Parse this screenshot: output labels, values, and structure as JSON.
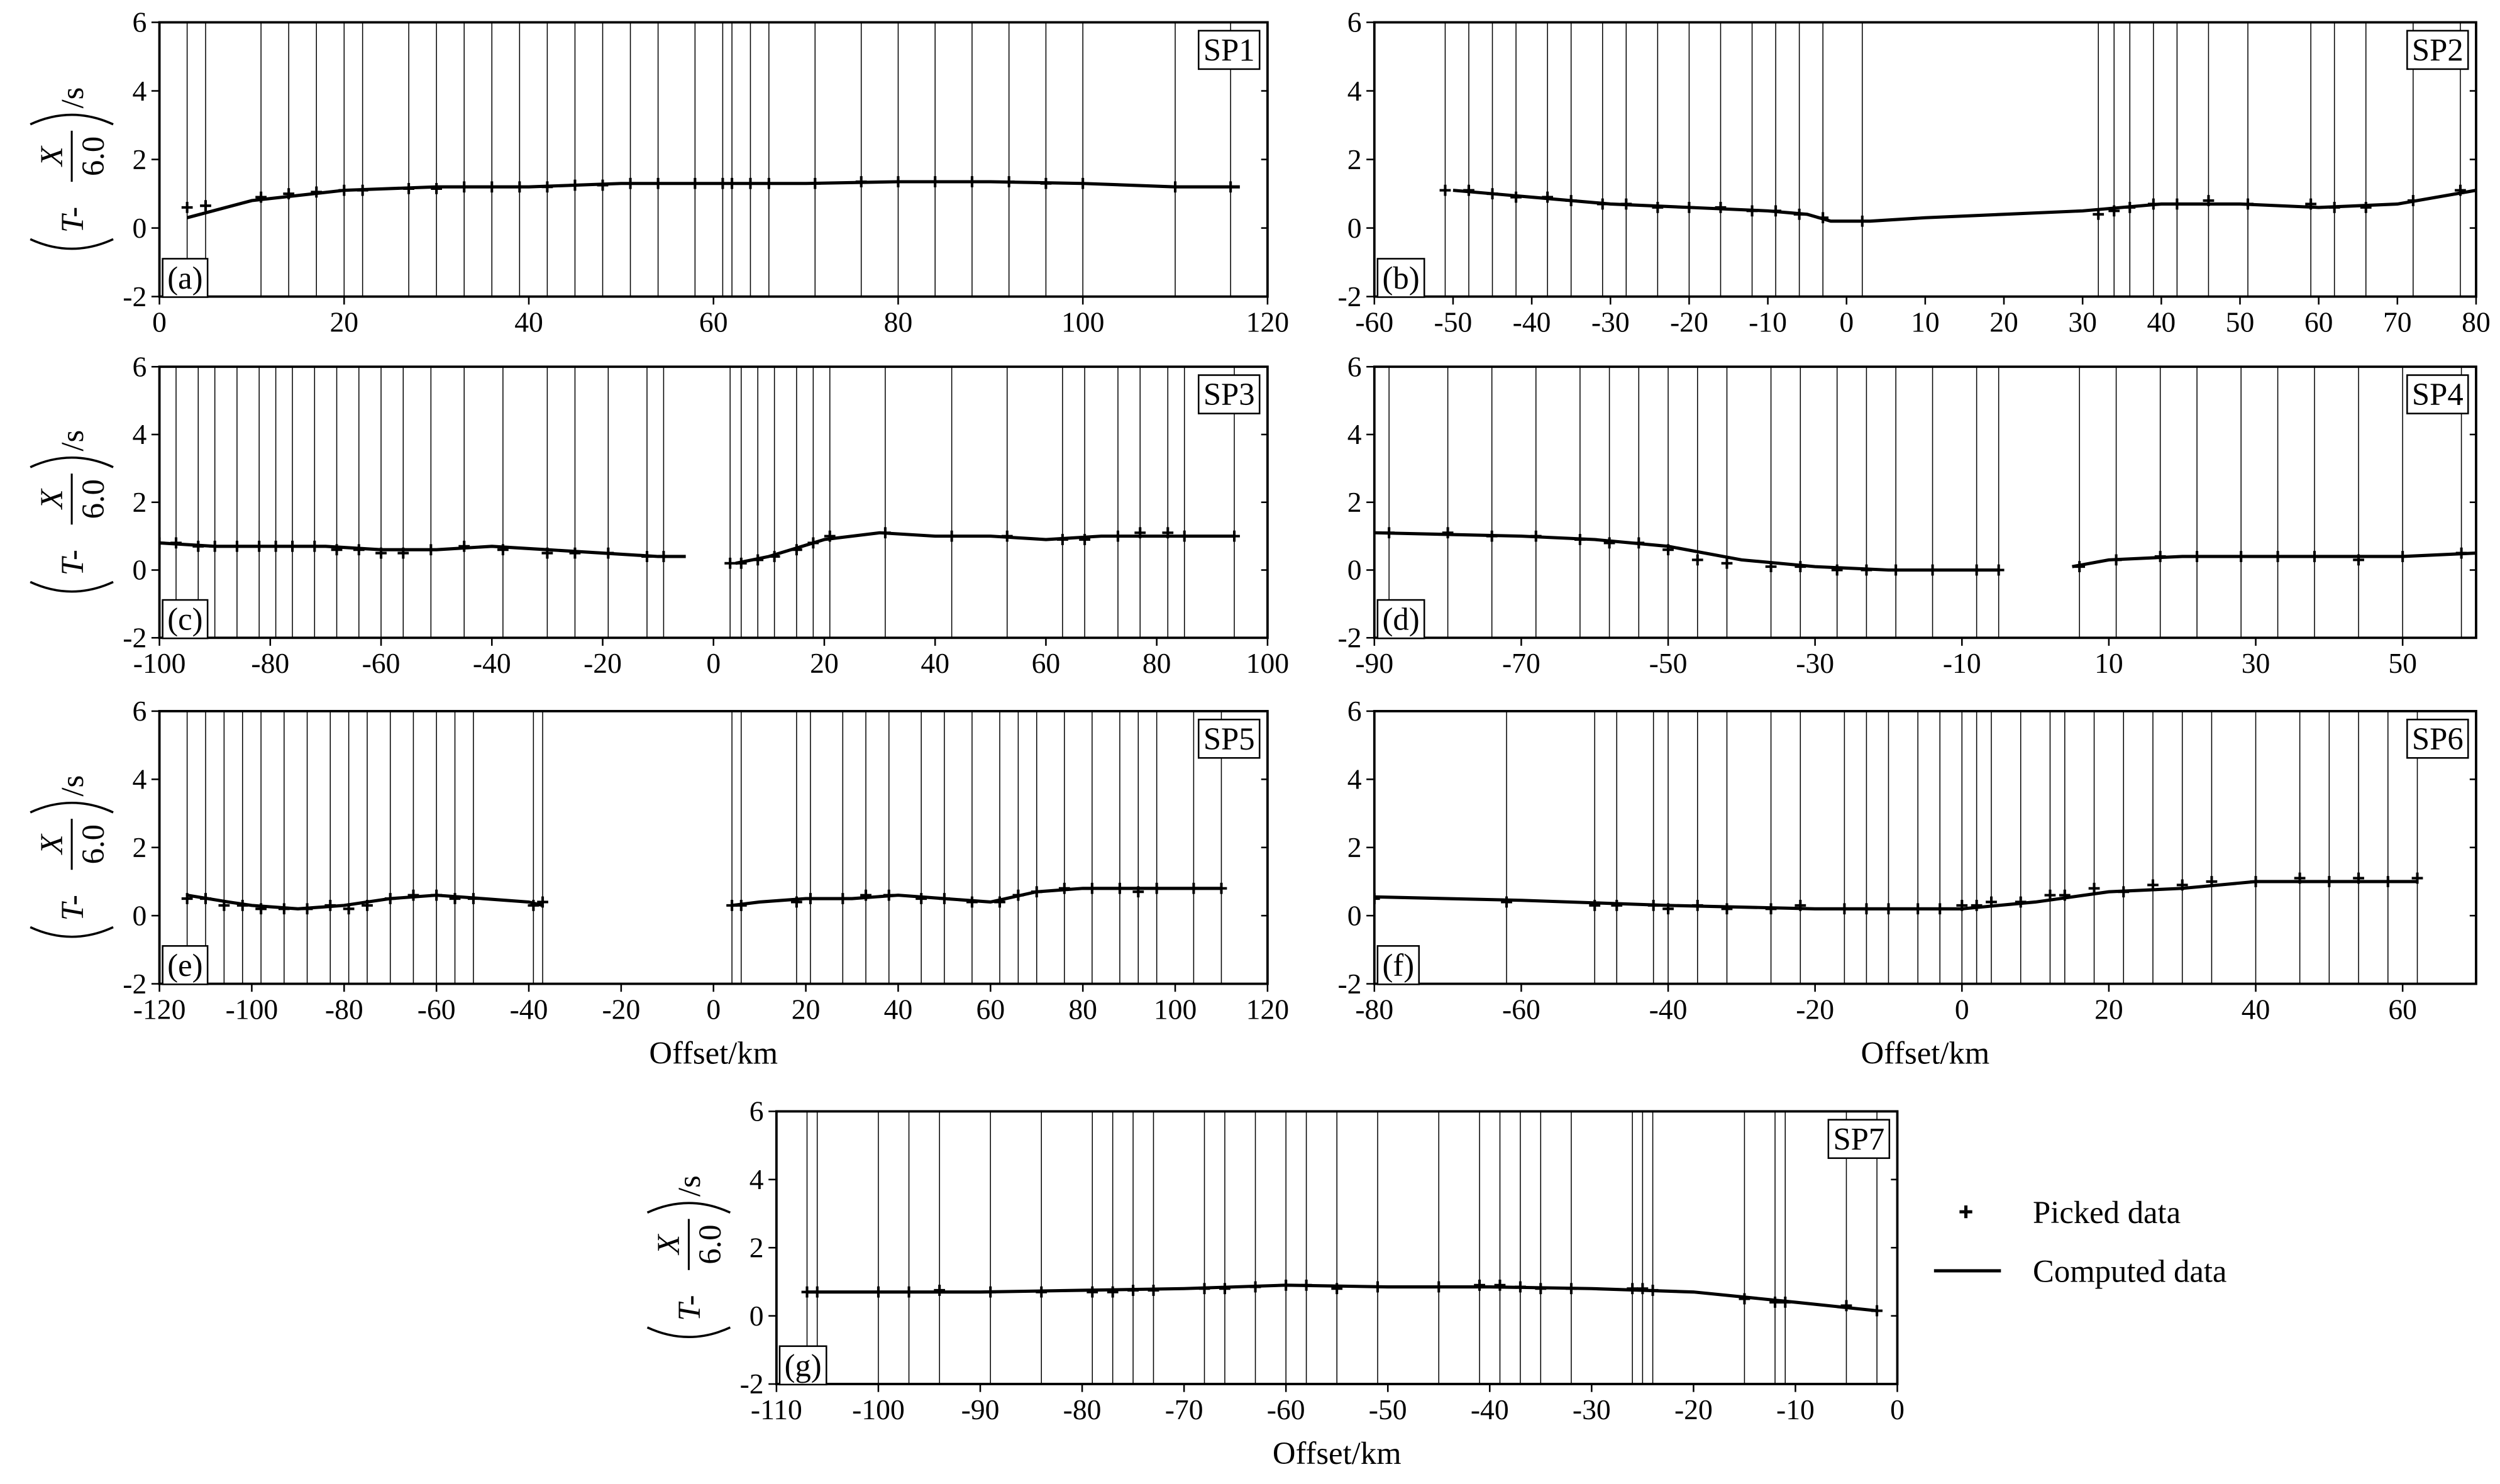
{
  "chart_data": [
    {
      "type": "line",
      "label": "(a)",
      "tag": "SP1",
      "xlim": [
        0,
        120
      ],
      "xticks": [
        0,
        20,
        40,
        60,
        80,
        100,
        120
      ],
      "ylim": [
        -2,
        6
      ],
      "yticks": [
        -2,
        0,
        2,
        4,
        6
      ],
      "ylabel": {
        "pre": "T-",
        "num": "X",
        "den": "6.0",
        "unit": "/s"
      },
      "series": [
        {
          "mode": "markers",
          "color": "#000000",
          "x": [
            3,
            5,
            11,
            14,
            17,
            20,
            22,
            27,
            30,
            33,
            36,
            39,
            42,
            45,
            48,
            51,
            54,
            58,
            61,
            62,
            64,
            66,
            71,
            76,
            80,
            84,
            88,
            92,
            96,
            100,
            110,
            116
          ],
          "values": [
            0.6,
            0.65,
            0.9,
            1.0,
            1.05,
            1.1,
            1.1,
            1.15,
            1.15,
            1.2,
            1.2,
            1.2,
            1.2,
            1.25,
            1.25,
            1.3,
            1.3,
            1.3,
            1.3,
            1.3,
            1.3,
            1.3,
            1.3,
            1.35,
            1.35,
            1.35,
            1.35,
            1.35,
            1.3,
            1.3,
            1.2,
            1.2
          ]
        },
        {
          "mode": "lines",
          "color": "#000000",
          "x": [
            3,
            10,
            20,
            30,
            40,
            50,
            60,
            70,
            80,
            90,
            100,
            110,
            117
          ],
          "values": [
            0.3,
            0.8,
            1.1,
            1.2,
            1.2,
            1.3,
            1.3,
            1.3,
            1.35,
            1.35,
            1.3,
            1.2,
            1.2
          ]
        }
      ]
    },
    {
      "type": "line",
      "label": "(b)",
      "tag": "SP2",
      "xlim": [
        -60,
        80
      ],
      "xticks": [
        -60,
        -50,
        -40,
        -30,
        -20,
        -10,
        0,
        10,
        20,
        30,
        40,
        50,
        60,
        70,
        80
      ],
      "ylim": [
        -2,
        6
      ],
      "yticks": [
        -2,
        0,
        2,
        4,
        6
      ],
      "series": [
        {
          "mode": "markers",
          "color": "#000000",
          "x": [
            -51,
            -48,
            -45,
            -42,
            -38,
            -35,
            -31,
            -28,
            -24,
            -20,
            -16,
            -12,
            -9,
            -6,
            -3,
            2,
            32,
            34,
            36,
            39,
            42,
            46,
            51,
            59,
            62,
            66,
            72,
            78
          ],
          "values": [
            1.1,
            1.1,
            1.0,
            0.9,
            0.9,
            0.8,
            0.7,
            0.7,
            0.6,
            0.6,
            0.6,
            0.5,
            0.5,
            0.4,
            0.3,
            0.2,
            0.4,
            0.5,
            0.6,
            0.7,
            0.7,
            0.8,
            0.7,
            0.7,
            0.6,
            0.6,
            0.8,
            1.1
          ]
        },
        {
          "mode": "lines",
          "color": "#000000",
          "x": [
            -50,
            -40,
            -30,
            -20,
            -10,
            -5,
            -2,
            0,
            3,
            10,
            20,
            30,
            35,
            40,
            50,
            60,
            70,
            80
          ],
          "values": [
            1.1,
            0.9,
            0.7,
            0.6,
            0.5,
            0.4,
            0.2,
            0.2,
            0.2,
            0.3,
            0.4,
            0.5,
            0.6,
            0.7,
            0.7,
            0.6,
            0.7,
            1.1
          ]
        }
      ]
    },
    {
      "type": "line",
      "label": "(c)",
      "tag": "SP3",
      "xlim": [
        -100,
        100
      ],
      "xticks": [
        -100,
        -80,
        -60,
        -40,
        -20,
        0,
        20,
        40,
        60,
        80,
        100
      ],
      "ylim": [
        -2,
        6
      ],
      "yticks": [
        -2,
        0,
        2,
        4,
        6
      ],
      "ylabel": {
        "pre": "T-",
        "num": "X",
        "den": "6.0",
        "unit": "/s"
      },
      "series": [
        {
          "mode": "markers",
          "color": "#000000",
          "x": [
            -100,
            -97,
            -93,
            -90,
            -86,
            -82,
            -79,
            -76,
            -72,
            -68,
            -64,
            -60,
            -56,
            -51,
            -45,
            -38,
            -30,
            -25,
            -19,
            -12,
            -9,
            3,
            5,
            8,
            11,
            15,
            18,
            21,
            31,
            43,
            53,
            63,
            67,
            73,
            77,
            82,
            85,
            94
          ],
          "values": [
            0.8,
            0.8,
            0.7,
            0.7,
            0.7,
            0.7,
            0.7,
            0.7,
            0.7,
            0.6,
            0.6,
            0.5,
            0.5,
            0.6,
            0.7,
            0.6,
            0.5,
            0.5,
            0.5,
            0.4,
            0.4,
            0.2,
            0.2,
            0.3,
            0.4,
            0.6,
            0.8,
            1.0,
            1.1,
            1.0,
            1.0,
            0.9,
            0.9,
            1.0,
            1.1,
            1.1,
            1.0,
            1.0
          ]
        },
        {
          "mode": "lines",
          "color": "#000000",
          "x": [
            -100,
            -90,
            -80,
            -70,
            -60,
            -50,
            -40,
            -30,
            -20,
            -10,
            -5,
            0,
            4,
            10,
            20,
            30,
            40,
            50,
            60,
            70,
            80,
            94
          ],
          "values": [
            0.8,
            0.7,
            0.7,
            0.7,
            0.6,
            0.6,
            0.7,
            0.6,
            0.5,
            0.4,
            0.4,
            null,
            0.2,
            0.4,
            0.9,
            1.1,
            1.0,
            1.0,
            0.9,
            1.0,
            1.0,
            1.0
          ]
        }
      ]
    },
    {
      "type": "line",
      "label": "(d)",
      "tag": "SP4",
      "xlim": [
        -90,
        60
      ],
      "xticks": [
        -90,
        -70,
        -50,
        -30,
        -10,
        10,
        30,
        50
      ],
      "ylim": [
        -2,
        6
      ],
      "yticks": [
        -2,
        0,
        2,
        4,
        6
      ],
      "series": [
        {
          "mode": "markers",
          "color": "#000000",
          "x": [
            -88,
            -80,
            -74,
            -68,
            -62,
            -58,
            -54,
            -50,
            -46,
            -42,
            -36,
            -32,
            -27,
            -23,
            -19,
            -14,
            -8,
            -5,
            6,
            11,
            17,
            22,
            28,
            33,
            38,
            44,
            50,
            58
          ],
          "values": [
            1.1,
            1.1,
            1.0,
            1.0,
            0.9,
            0.8,
            0.8,
            0.6,
            0.3,
            0.2,
            0.1,
            0.1,
            0.0,
            0.0,
            0.0,
            0.0,
            0.0,
            0.0,
            0.1,
            0.3,
            0.4,
            0.4,
            0.4,
            0.4,
            0.4,
            0.3,
            0.4,
            0.5
          ]
        },
        {
          "mode": "lines",
          "color": "#000000",
          "x": [
            -90,
            -70,
            -60,
            -50,
            -40,
            -30,
            -20,
            -10,
            -5,
            0,
            5,
            10,
            20,
            30,
            40,
            50,
            60
          ],
          "values": [
            1.1,
            1.0,
            0.9,
            0.7,
            0.3,
            0.1,
            0.0,
            0.0,
            0.0,
            null,
            0.1,
            0.3,
            0.4,
            0.4,
            0.4,
            0.4,
            0.5
          ]
        }
      ]
    },
    {
      "type": "line",
      "label": "(e)",
      "tag": "SP5",
      "xlim": [
        -120,
        120
      ],
      "xticks": [
        -120,
        -100,
        -80,
        -60,
        -40,
        -20,
        0,
        20,
        40,
        60,
        80,
        100,
        120
      ],
      "ylim": [
        -2,
        6
      ],
      "yticks": [
        -2,
        0,
        2,
        4,
        6
      ],
      "ylabel": {
        "pre": "T-",
        "num": "X",
        "den": "6.0",
        "unit": "/s"
      },
      "xlabel": "Offset/km",
      "series": [
        {
          "mode": "markers",
          "color": "#000000",
          "x": [
            -114,
            -110,
            -106,
            -102,
            -98,
            -93,
            -88,
            -83,
            -79,
            -75,
            -70,
            -65,
            -60,
            -56,
            -52,
            -39,
            -37,
            4,
            6,
            18,
            21,
            28,
            33,
            38,
            45,
            50,
            56,
            62,
            66,
            70,
            76,
            82,
            88,
            92,
            96,
            104,
            110
          ],
          "values": [
            0.5,
            0.5,
            0.3,
            0.3,
            0.2,
            0.2,
            0.2,
            0.3,
            0.2,
            0.3,
            0.5,
            0.6,
            0.6,
            0.5,
            0.5,
            0.3,
            0.4,
            0.3,
            0.3,
            0.4,
            0.5,
            0.5,
            0.6,
            0.6,
            0.5,
            0.5,
            0.4,
            0.4,
            0.6,
            0.7,
            0.8,
            0.8,
            0.8,
            0.7,
            0.8,
            0.8,
            0.8
          ]
        },
        {
          "mode": "lines",
          "color": "#000000",
          "x": [
            -114,
            -105,
            -100,
            -90,
            -80,
            -70,
            -60,
            -50,
            -40,
            -37,
            0,
            4,
            10,
            20,
            30,
            40,
            50,
            60,
            70,
            80,
            90,
            100,
            110
          ],
          "values": [
            0.6,
            0.4,
            0.3,
            0.2,
            0.3,
            0.5,
            0.6,
            0.5,
            0.4,
            0.3,
            null,
            0.3,
            0.4,
            0.5,
            0.5,
            0.6,
            0.5,
            0.4,
            0.7,
            0.8,
            0.8,
            0.8,
            0.8
          ]
        }
      ]
    },
    {
      "type": "line",
      "label": "(f)",
      "tag": "SP6",
      "xlim": [
        -80,
        70
      ],
      "xticks": [
        -80,
        -60,
        -40,
        -20,
        0,
        20,
        40,
        60
      ],
      "ylim": [
        -2,
        6
      ],
      "yticks": [
        -2,
        0,
        2,
        4,
        6
      ],
      "xlabel": "Offset/km",
      "series": [
        {
          "mode": "markers",
          "color": "#000000",
          "x": [
            -80,
            -62,
            -50,
            -47,
            -42,
            -40,
            -36,
            -32,
            -26,
            -22,
            -16,
            -13,
            -10,
            -6,
            -3,
            0,
            2,
            4,
            8,
            12,
            14,
            18,
            22,
            26,
            30,
            34,
            40,
            46,
            50,
            54,
            58,
            62
          ],
          "values": [
            0.5,
            0.4,
            0.3,
            0.3,
            0.3,
            0.2,
            0.3,
            0.2,
            0.2,
            0.3,
            0.2,
            0.2,
            0.2,
            0.2,
            0.2,
            0.3,
            0.3,
            0.4,
            0.4,
            0.6,
            0.6,
            0.8,
            0.7,
            0.9,
            0.9,
            1.0,
            1.0,
            1.1,
            1.0,
            1.1,
            1.0,
            1.1
          ]
        },
        {
          "mode": "lines",
          "color": "#000000",
          "x": [
            -80,
            -60,
            -40,
            -20,
            0,
            10,
            20,
            30,
            40,
            50,
            62
          ],
          "values": [
            0.55,
            0.45,
            0.3,
            0.2,
            0.2,
            0.4,
            0.7,
            0.8,
            1.0,
            1.0,
            1.0
          ]
        }
      ]
    },
    {
      "type": "line",
      "label": "(g)",
      "tag": "SP7",
      "xlim": [
        -110,
        0
      ],
      "xticks": [
        -110,
        -100,
        -90,
        -80,
        -70,
        -60,
        -50,
        -40,
        -30,
        -20,
        -10,
        0
      ],
      "ylim": [
        -2,
        6
      ],
      "yticks": [
        -2,
        0,
        2,
        4,
        6
      ],
      "ylabel": {
        "pre": "T-",
        "num": "X",
        "den": "6.0",
        "unit": "/s"
      },
      "xlabel": "Offset/km",
      "series": [
        {
          "name": "Picked data",
          "mode": "markers",
          "color": "#000000",
          "x": [
            -107,
            -106,
            -100,
            -97,
            -94,
            -89,
            -84,
            -79,
            -77,
            -75,
            -73,
            -68,
            -66,
            -63,
            -60,
            -58,
            -55,
            -51,
            -45,
            -41,
            -39,
            -37,
            -35,
            -32,
            -26,
            -25,
            -24,
            -15,
            -12,
            -11,
            -5,
            -2
          ],
          "values": [
            0.7,
            0.7,
            0.7,
            0.7,
            0.75,
            0.7,
            0.7,
            0.7,
            0.7,
            0.75,
            0.75,
            0.8,
            0.8,
            0.85,
            0.9,
            0.9,
            0.8,
            0.85,
            0.85,
            0.9,
            0.9,
            0.85,
            0.8,
            0.8,
            0.8,
            0.8,
            0.75,
            0.5,
            0.4,
            0.4,
            0.3,
            0.15
          ]
        },
        {
          "name": "Computed data",
          "mode": "lines",
          "color": "#000000",
          "x": [
            -107,
            -100,
            -90,
            -80,
            -70,
            -60,
            -50,
            -40,
            -30,
            -20,
            -10,
            -2
          ],
          "values": [
            0.7,
            0.7,
            0.7,
            0.75,
            0.8,
            0.9,
            0.85,
            0.85,
            0.8,
            0.7,
            0.4,
            0.15
          ]
        }
      ]
    }
  ]
}
